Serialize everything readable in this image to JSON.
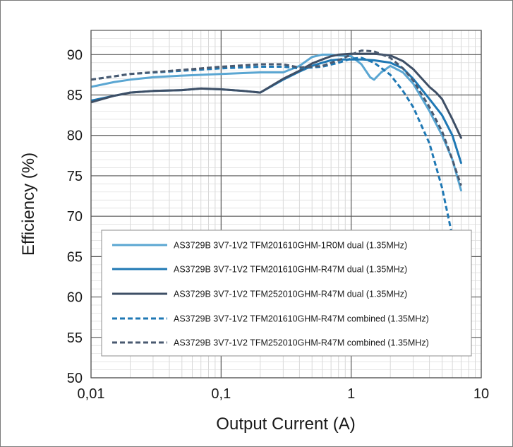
{
  "chart_data": {
    "type": "line",
    "xlabel": "Output Current (A)",
    "ylabel": "Efficiency (%)",
    "x_scale": "log",
    "xlim": [
      0.01,
      10
    ],
    "ylim": [
      50,
      93
    ],
    "x_ticks": [
      {
        "value": 0.01,
        "label": "0,01"
      },
      {
        "value": 0.1,
        "label": "0,1"
      },
      {
        "value": 1,
        "label": "1"
      },
      {
        "value": 10,
        "label": "10"
      }
    ],
    "y_ticks": [
      50,
      55,
      60,
      65,
      70,
      75,
      80,
      85,
      90
    ],
    "grid": true,
    "legend_position": "bottom-center",
    "series": [
      {
        "name": "AS3729B 3V7-1V2 TFM201610GHM-1R0M dual (1.35MHz)",
        "color": "#5aa6d2",
        "dash": "solid",
        "points": [
          [
            0.01,
            86.0
          ],
          [
            0.015,
            86.6
          ],
          [
            0.02,
            86.9
          ],
          [
            0.03,
            87.2
          ],
          [
            0.05,
            87.4
          ],
          [
            0.1,
            87.6
          ],
          [
            0.2,
            87.8
          ],
          [
            0.3,
            87.8
          ],
          [
            0.4,
            88.6
          ],
          [
            0.5,
            89.7
          ],
          [
            0.6,
            90.0
          ],
          [
            0.7,
            90.0
          ],
          [
            0.8,
            89.9
          ],
          [
            1.0,
            89.8
          ],
          [
            1.2,
            88.8
          ],
          [
            1.4,
            87.2
          ],
          [
            1.5,
            86.9
          ],
          [
            1.7,
            87.8
          ],
          [
            2.0,
            88.6
          ],
          [
            2.5,
            87.8
          ],
          [
            3.0,
            86.4
          ],
          [
            4.0,
            83.0
          ],
          [
            5.0,
            80.0
          ],
          [
            6.0,
            77.0
          ],
          [
            7.0,
            73.2
          ]
        ]
      },
      {
        "name": "AS3729B 3V7-1V2 TFM201610GHM-R47M dual (1.35MHz)",
        "color": "#1f78b4",
        "dash": "solid",
        "points": [
          [
            0.01,
            84.3
          ],
          [
            0.015,
            84.9
          ],
          [
            0.02,
            85.3
          ],
          [
            0.03,
            85.5
          ],
          [
            0.05,
            85.6
          ],
          [
            0.07,
            85.8
          ],
          [
            0.1,
            85.7
          ],
          [
            0.15,
            85.5
          ],
          [
            0.2,
            85.3
          ],
          [
            0.3,
            86.9
          ],
          [
            0.4,
            87.9
          ],
          [
            0.5,
            88.6
          ],
          [
            0.6,
            89.0
          ],
          [
            0.7,
            89.3
          ],
          [
            0.8,
            89.4
          ],
          [
            1.0,
            89.4
          ],
          [
            1.2,
            89.4
          ],
          [
            1.5,
            89.3
          ],
          [
            2.0,
            89.0
          ],
          [
            2.5,
            88.3
          ],
          [
            3.0,
            87.0
          ],
          [
            4.0,
            84.5
          ],
          [
            5.0,
            82.5
          ],
          [
            6.0,
            80.0
          ],
          [
            7.0,
            76.6
          ]
        ]
      },
      {
        "name": "AS3729B 3V7-1V2 TFM252010GHM-R47M dual (1.35MHz)",
        "color": "#3e4f66",
        "dash": "solid",
        "points": [
          [
            0.01,
            84.1
          ],
          [
            0.015,
            84.9
          ],
          [
            0.02,
            85.3
          ],
          [
            0.03,
            85.5
          ],
          [
            0.05,
            85.6
          ],
          [
            0.07,
            85.8
          ],
          [
            0.1,
            85.7
          ],
          [
            0.15,
            85.5
          ],
          [
            0.2,
            85.3
          ],
          [
            0.3,
            87.0
          ],
          [
            0.4,
            88.0
          ],
          [
            0.5,
            88.9
          ],
          [
            0.6,
            89.4
          ],
          [
            0.7,
            89.8
          ],
          [
            0.8,
            90.0
          ],
          [
            1.0,
            90.1
          ],
          [
            1.2,
            90.1
          ],
          [
            1.5,
            90.1
          ],
          [
            2.0,
            89.9
          ],
          [
            2.5,
            89.2
          ],
          [
            3.0,
            88.2
          ],
          [
            4.0,
            86.0
          ],
          [
            4.5,
            85.3
          ],
          [
            5.0,
            84.5
          ],
          [
            6.0,
            82.0
          ],
          [
            7.0,
            79.7
          ]
        ]
      },
      {
        "name": "AS3729B 3V7-1V2 TFM201610GHM-R47M combined (1.35MHz)",
        "color": "#1f78b4",
        "dash": "dashed",
        "points": [
          [
            0.01,
            86.9
          ],
          [
            0.02,
            87.6
          ],
          [
            0.05,
            88.0
          ],
          [
            0.1,
            88.3
          ],
          [
            0.2,
            88.5
          ],
          [
            0.3,
            88.5
          ],
          [
            0.4,
            88.3
          ],
          [
            0.6,
            88.5
          ],
          [
            0.8,
            89.0
          ],
          [
            1.0,
            89.5
          ],
          [
            1.2,
            89.6
          ],
          [
            1.5,
            89.0
          ],
          [
            2.0,
            87.5
          ],
          [
            2.5,
            85.5
          ],
          [
            3.0,
            83.5
          ],
          [
            4.0,
            79.0
          ],
          [
            5.0,
            73.5
          ],
          [
            6.0,
            67.5
          ],
          [
            6.5,
            63.0
          ],
          [
            7.0,
            55.0
          ]
        ]
      },
      {
        "name": "AS3729B 3V7-1V2 TFM252010GHM-R47M combined (1.35MHz)",
        "color": "#4a5a70",
        "dash": "dashed",
        "points": [
          [
            0.01,
            86.9
          ],
          [
            0.02,
            87.6
          ],
          [
            0.05,
            88.1
          ],
          [
            0.1,
            88.5
          ],
          [
            0.2,
            88.8
          ],
          [
            0.3,
            88.8
          ],
          [
            0.4,
            88.4
          ],
          [
            0.6,
            88.6
          ],
          [
            0.8,
            89.3
          ],
          [
            1.0,
            90.0
          ],
          [
            1.2,
            90.5
          ],
          [
            1.5,
            90.4
          ],
          [
            2.0,
            89.6
          ],
          [
            2.5,
            88.3
          ],
          [
            3.0,
            86.8
          ],
          [
            4.0,
            83.5
          ],
          [
            5.0,
            80.5
          ],
          [
            6.0,
            77.0
          ],
          [
            7.0,
            73.8
          ]
        ]
      }
    ]
  }
}
